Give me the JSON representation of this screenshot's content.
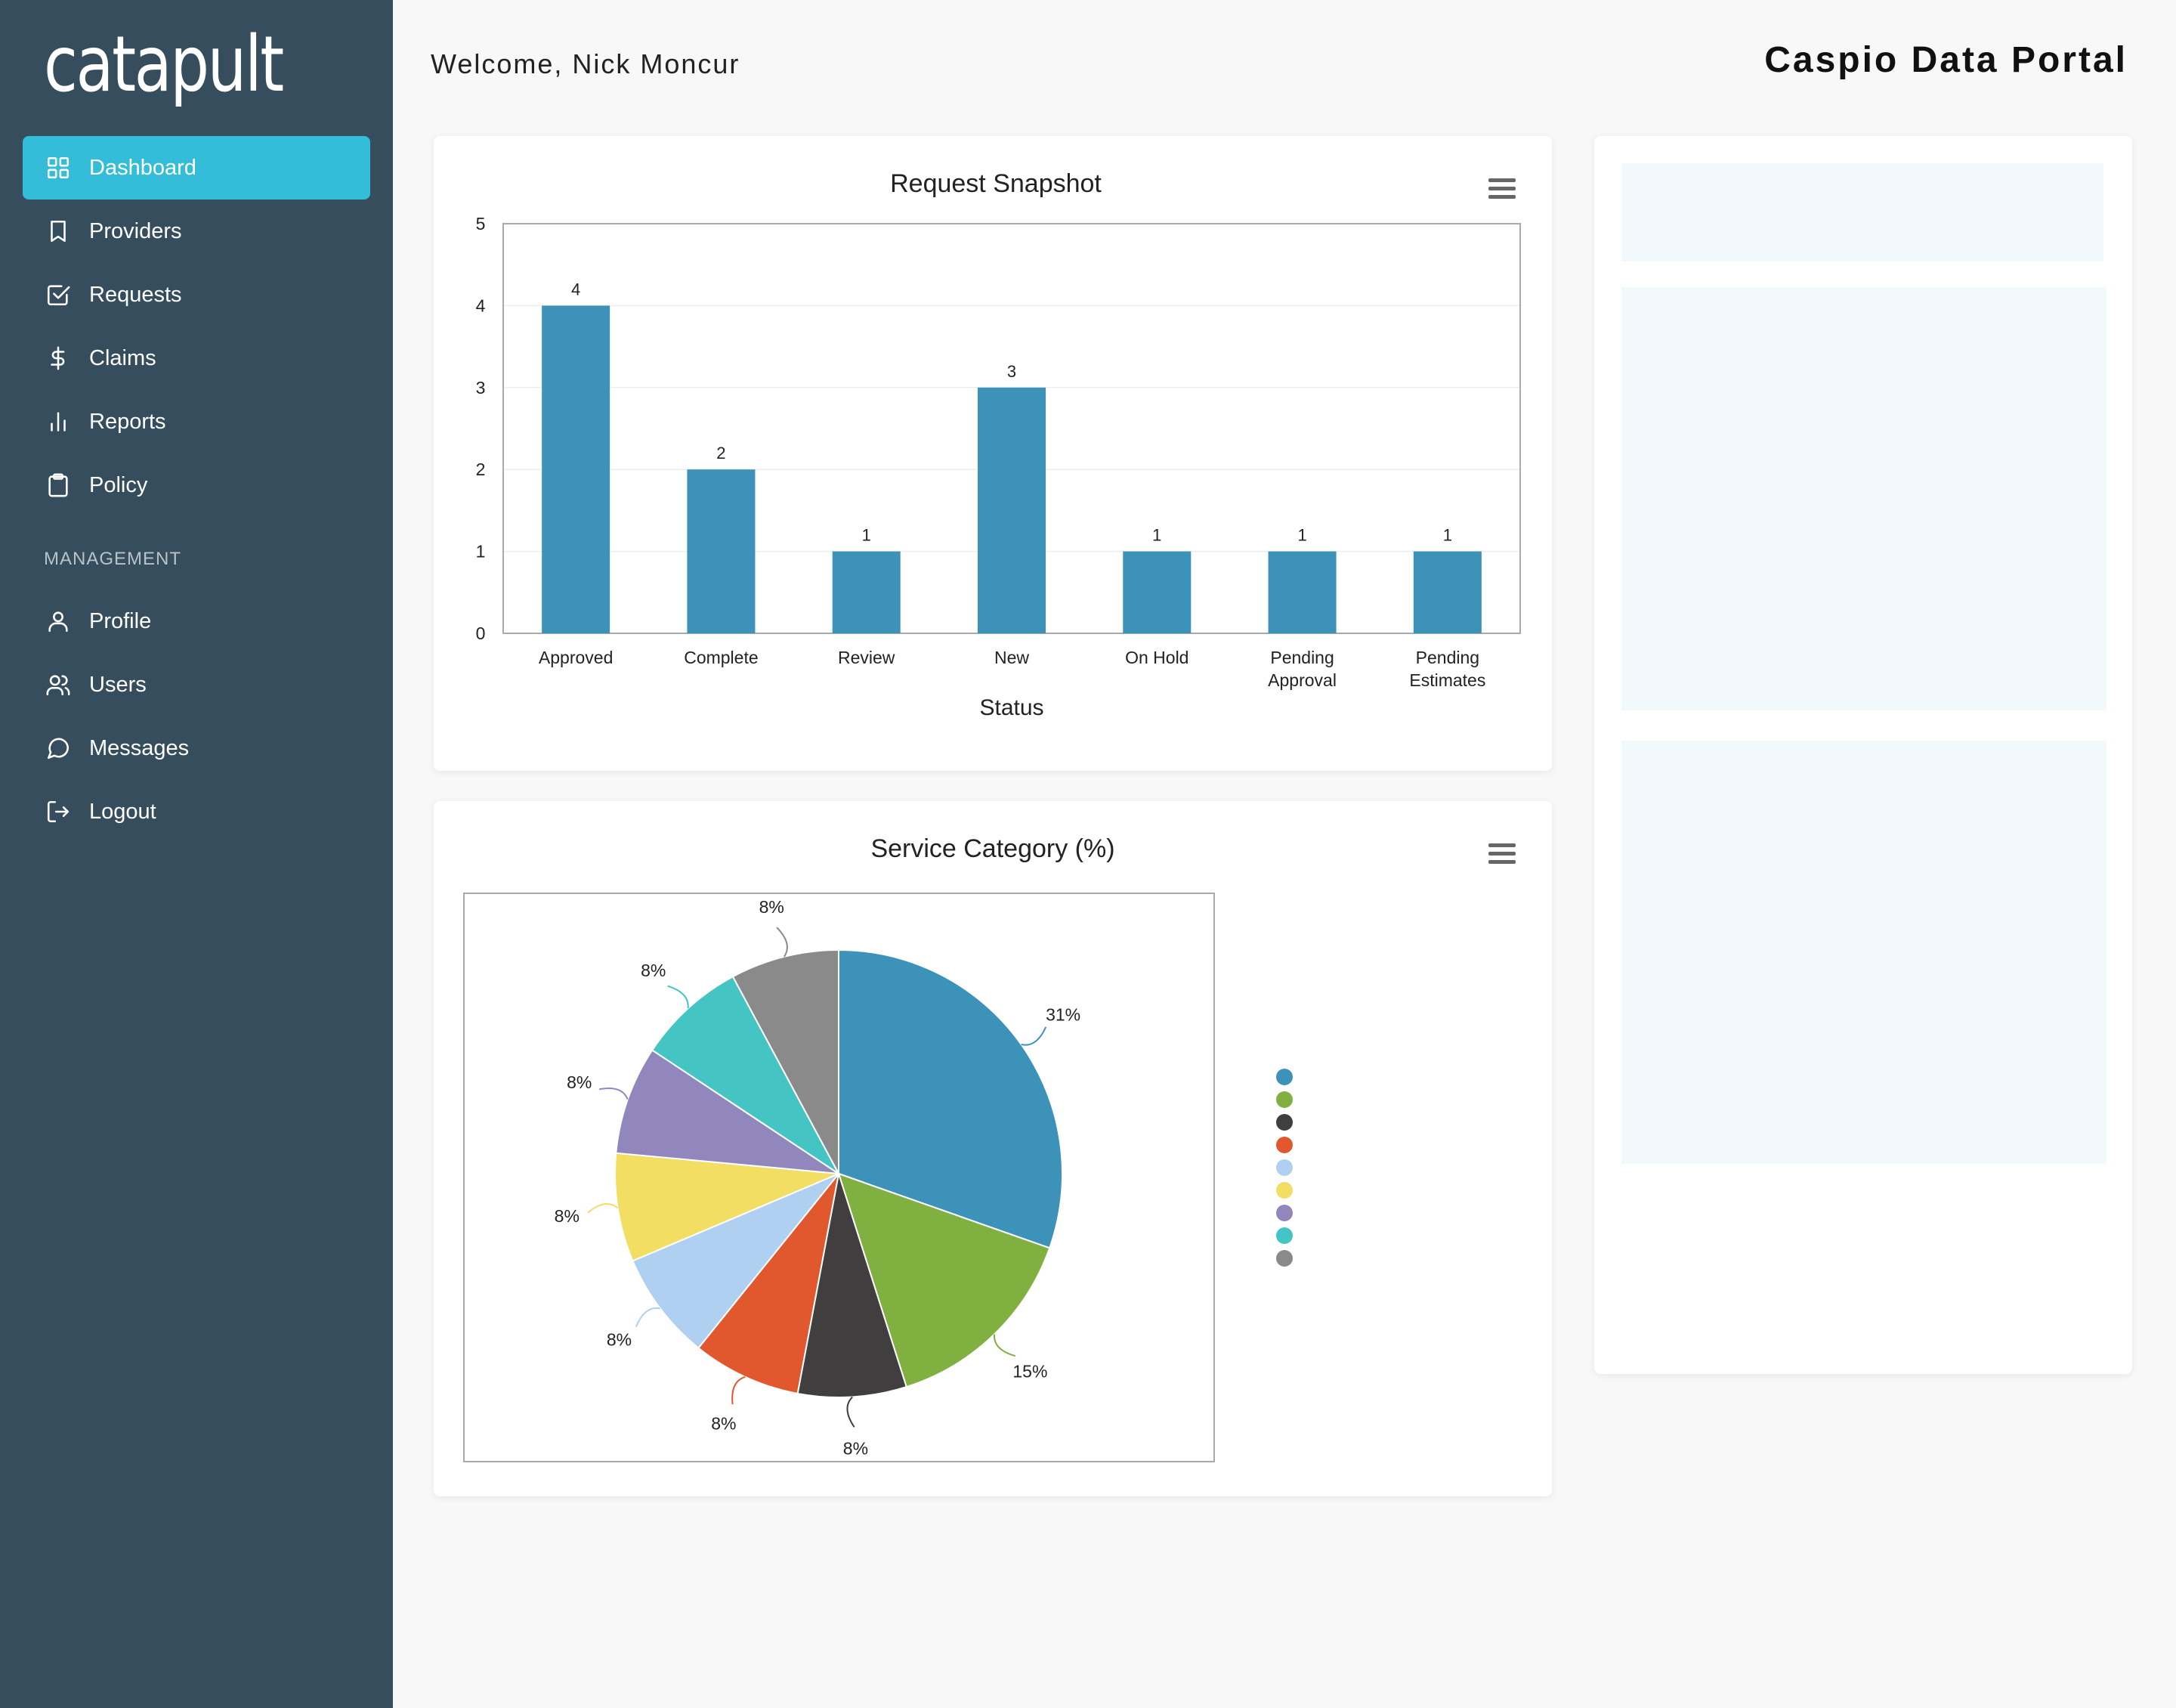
{
  "app": {
    "logo": "catapult",
    "welcome": "Welcome, Nick Moncur",
    "portal_title": "Caspio Data Portal"
  },
  "sidebar": {
    "items": [
      {
        "label": "Dashboard",
        "icon": "grid-icon",
        "active": true
      },
      {
        "label": "Providers",
        "icon": "bookmark-icon"
      },
      {
        "label": "Requests",
        "icon": "check-square-icon"
      },
      {
        "label": "Claims",
        "icon": "dollar-icon"
      },
      {
        "label": "Reports",
        "icon": "bar-chart-icon"
      },
      {
        "label": "Policy",
        "icon": "clipboard-icon"
      }
    ],
    "management_heading": "MANAGEMENT",
    "management_items": [
      {
        "label": "Profile",
        "icon": "user-icon"
      },
      {
        "label": "Users",
        "icon": "users-icon"
      },
      {
        "label": "Messages",
        "icon": "message-icon"
      },
      {
        "label": "Logout",
        "icon": "logout-icon"
      }
    ]
  },
  "chart_data": [
    {
      "type": "bar",
      "title": "Request Snapshot",
      "xlabel": "Status",
      "ylabel": "",
      "categories": [
        "Approved",
        "Complete",
        "Review",
        "New",
        "On Hold",
        "Pending Approval",
        "Pending Estimates"
      ],
      "values": [
        4,
        2,
        1,
        3,
        1,
        1,
        1
      ],
      "ylim": [
        0,
        5
      ],
      "yticks": [
        0,
        1,
        2,
        3,
        4,
        5
      ],
      "color": "#3d92ba",
      "data_labels": true,
      "grid": true
    },
    {
      "type": "pie",
      "title": "Service Category (%)",
      "values": [
        31,
        15,
        8,
        8,
        8,
        8,
        8,
        8,
        8
      ],
      "labels": [
        "31%",
        "15%",
        "8%",
        "8%",
        "8%",
        "8%",
        "8%",
        "8%",
        "8%"
      ],
      "colors": [
        "#3d92ba",
        "#80b040",
        "#403e3f",
        "#e1582e",
        "#b0d0f2",
        "#f1de62",
        "#9287bd",
        "#45c4c4",
        "#8a8a8a"
      ],
      "legend": "right"
    }
  ]
}
